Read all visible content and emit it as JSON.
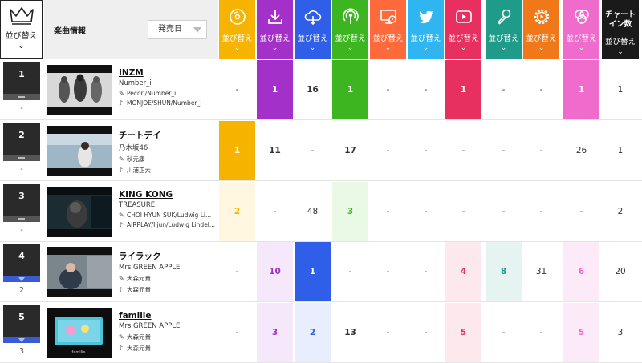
{
  "header": {
    "sort_label": "並び替え",
    "song_info_label": "楽曲情報",
    "date_select": {
      "value": "発売日"
    },
    "chart_in_title": [
      "チャート",
      "イン数"
    ],
    "columns": [
      {
        "key": "cd",
        "icon": "cd-icon",
        "color": "#f6b300"
      },
      {
        "key": "download",
        "icon": "download-icon",
        "color": "#a330c9"
      },
      {
        "key": "streaming",
        "icon": "cloud-stream-icon",
        "color": "#2f5ee8"
      },
      {
        "key": "radio",
        "icon": "radio-icon",
        "color": "#3cb520"
      },
      {
        "key": "pc",
        "icon": "pc-disc-icon",
        "color": "#ff6a3d"
      },
      {
        "key": "twitter",
        "icon": "twitter-icon",
        "color": "#2fb5f0"
      },
      {
        "key": "youtube",
        "icon": "youtube-icon",
        "color": "#e83060"
      },
      {
        "key": "karaoke",
        "icon": "microphone-icon",
        "color": "#1f9b8a"
      },
      {
        "key": "gyao",
        "icon": "play-gear-icon",
        "color": "#f07818"
      },
      {
        "key": "tiktok",
        "icon": "circles-icon",
        "color": "#f06ccc"
      }
    ]
  },
  "rows": [
    {
      "rank": "1",
      "mark": "same",
      "prev": "-",
      "title": "INZM",
      "artist": "Number_i",
      "lyrics": "Pecori/Number_i",
      "music": "MONJOE/SHUN/Number_i",
      "cells": [
        "-",
        "1",
        "16",
        "1",
        "-",
        "-",
        "1",
        "-",
        "-",
        "1"
      ],
      "chart_in": "1",
      "highlights": {
        "1": "#a330c9",
        "3": "#3cb520",
        "6": "#e83060",
        "9": "#f06ccc"
      }
    },
    {
      "rank": "2",
      "mark": "same",
      "prev": "-",
      "title": "チートデイ",
      "artist": "乃木坂46",
      "lyrics": "秋元康",
      "music": "川浦正大",
      "cells": [
        "1",
        "11",
        "-",
        "17",
        "-",
        "-",
        "-",
        "-",
        "-",
        "26"
      ],
      "chart_in": "1",
      "highlights": {
        "0": "#f6b300"
      }
    },
    {
      "rank": "3",
      "mark": "same",
      "prev": "-",
      "title": "KING KONG",
      "artist": "TREASURE",
      "lyrics": "CHOI HYUN SUK/Ludwig Li...",
      "music": "AIRPLAY/Iljun/Ludwig Lindel...",
      "cells": [
        "2",
        "-",
        "48",
        "3",
        "-",
        "-",
        "-",
        "-",
        "-",
        "-"
      ],
      "chart_in": "2",
      "tints": {
        "0": [
          "#fff7e0",
          "#f6b300"
        ],
        "3": [
          "#eaf8e6",
          "#3cb520"
        ]
      }
    },
    {
      "rank": "4",
      "mark": "up",
      "prev": "2",
      "title": "ライラック",
      "artist": "Mrs.GREEN APPLE",
      "lyrics": "大森元貴",
      "music": "大森元貴",
      "cells": [
        "-",
        "10",
        "1",
        "-",
        "-",
        "-",
        "4",
        "8",
        "31",
        "6"
      ],
      "chart_in": "20",
      "highlights": {
        "2": "#2f5ee8"
      },
      "tints": {
        "1": [
          "#f6e8fb",
          "#a330c9"
        ],
        "6": [
          "#fde8ee",
          "#e83060"
        ],
        "7": [
          "#e6f4f1",
          "#1f9b8a"
        ],
        "9": [
          "#fdeaf8",
          "#f06ccc"
        ]
      }
    },
    {
      "rank": "5",
      "mark": "up",
      "prev": "3",
      "title": "familie",
      "artist": "Mrs.GREEN APPLE",
      "lyrics": "大森元貴",
      "music": "大森元貴",
      "cells": [
        "-",
        "3",
        "2",
        "13",
        "-",
        "-",
        "5",
        "-",
        "-",
        "5"
      ],
      "chart_in": "3",
      "tints": {
        "1": [
          "#f6e8fb",
          "#a330c9"
        ],
        "2": [
          "#e8eefd",
          "#2f5ee8"
        ],
        "6": [
          "#fde8ee",
          "#e83060"
        ],
        "9": [
          "#fdeaf8",
          "#f06ccc"
        ]
      }
    }
  ]
}
